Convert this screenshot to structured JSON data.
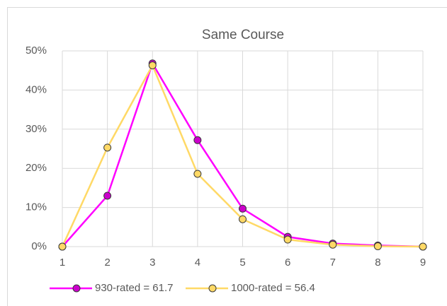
{
  "chart_data": {
    "type": "line",
    "title": "Same Course",
    "categories": [
      "1",
      "2",
      "3",
      "4",
      "5",
      "6",
      "7",
      "8",
      "9"
    ],
    "series": [
      {
        "name": "930-rated = 61.7",
        "color": "#ff00ff",
        "marker_color": "#cc00cc",
        "values": [
          0,
          13,
          46.8,
          27.2,
          9.7,
          2.5,
          0.8,
          0.3,
          0
        ]
      },
      {
        "name": "1000-rated = 56.4",
        "color": "#ffd966",
        "marker_color": "#ffd966",
        "values": [
          0,
          25.3,
          46.3,
          18.6,
          7,
          1.8,
          0.5,
          0.1,
          0
        ]
      }
    ],
    "ylim": [
      0,
      50
    ],
    "yticks": [
      {
        "value": 0,
        "label": "0%"
      },
      {
        "value": 10,
        "label": "10%"
      },
      {
        "value": 20,
        "label": "20%"
      },
      {
        "value": 30,
        "label": "30%"
      },
      {
        "value": 40,
        "label": "40%"
      },
      {
        "value": 50,
        "label": "50%"
      }
    ],
    "grid": true,
    "legend": "bottom"
  }
}
